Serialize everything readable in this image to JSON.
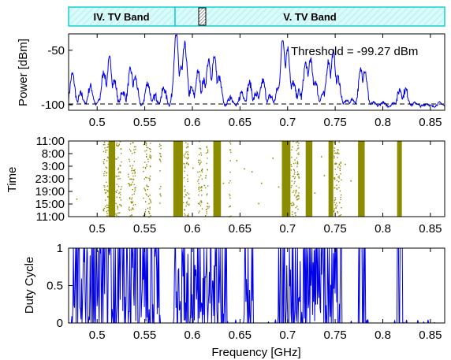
{
  "chart_data": [
    {
      "type": "line",
      "id": "power",
      "ylabel": "Power [dBm]",
      "xlim": [
        0.47,
        0.865
      ],
      "ylim": [
        -105,
        -35
      ],
      "yticks": [
        {
          "v": -50,
          "label": "-50"
        },
        {
          "v": -100,
          "label": "-100"
        }
      ],
      "xticks": [
        0.5,
        0.55,
        0.6,
        0.65,
        0.7,
        0.75,
        0.8,
        0.85
      ],
      "xtick_labels": [
        "0.5",
        "0.55",
        "0.6",
        "0.65",
        "0.7",
        "0.75",
        "0.8",
        "0.85"
      ],
      "threshold": -99.27,
      "annotation": "Threshold = -99.27 dBm",
      "series_color": "#0000e6",
      "series": [
        {
          "peaks": [
            [
              0.474,
              -72
            ],
            [
              0.483,
              -90
            ],
            [
              0.493,
              -83
            ],
            [
              0.503,
              -95
            ],
            [
              0.507,
              -70
            ],
            [
              0.513,
              -58
            ],
            [
              0.518,
              -78
            ],
            [
              0.527,
              -88
            ],
            [
              0.535,
              -68
            ],
            [
              0.54,
              -75
            ],
            [
              0.553,
              -80
            ],
            [
              0.561,
              -92
            ],
            [
              0.57,
              -85
            ],
            [
              0.583,
              -36
            ],
            [
              0.588,
              -66
            ],
            [
              0.592,
              -45
            ],
            [
              0.599,
              -85
            ],
            [
              0.606,
              -70
            ],
            [
              0.612,
              -78
            ],
            [
              0.617,
              -60
            ],
            [
              0.623,
              -55
            ],
            [
              0.628,
              -75
            ],
            [
              0.64,
              -92
            ],
            [
              0.652,
              -88
            ],
            [
              0.66,
              -80
            ],
            [
              0.667,
              -90
            ],
            [
              0.674,
              -78
            ],
            [
              0.682,
              -92
            ],
            [
              0.69,
              -85
            ],
            [
              0.695,
              -40
            ],
            [
              0.7,
              -48
            ],
            [
              0.706,
              -80
            ],
            [
              0.712,
              -88
            ],
            [
              0.719,
              -62
            ],
            [
              0.724,
              -58
            ],
            [
              0.729,
              -78
            ],
            [
              0.737,
              -90
            ],
            [
              0.743,
              -60
            ],
            [
              0.748,
              -52
            ],
            [
              0.753,
              -75
            ],
            [
              0.762,
              -96
            ],
            [
              0.768,
              -95
            ],
            [
              0.777,
              -68
            ],
            [
              0.781,
              -68
            ],
            [
              0.79,
              -98
            ],
            [
              0.8,
              -98
            ],
            [
              0.812,
              -98
            ],
            [
              0.818,
              -86
            ],
            [
              0.824,
              -86
            ],
            [
              0.834,
              -98
            ],
            [
              0.846,
              -99
            ],
            [
              0.86,
              -98
            ]
          ]
        }
      ]
    },
    {
      "type": "scatter",
      "id": "time",
      "ylabel": "Time",
      "xlim": [
        0.47,
        0.865
      ],
      "yticks": [
        "11:00",
        "8:00",
        "3:00",
        "23:00",
        "19:00",
        "15:00",
        "11:00"
      ],
      "xticks": [
        0.5,
        0.55,
        0.6,
        0.65,
        0.7,
        0.75,
        0.8,
        0.85
      ],
      "xtick_labels": [
        "0.5",
        "0.55",
        "0.6",
        "0.65",
        "0.7",
        "0.75",
        "0.8",
        "0.85"
      ],
      "marker_color": "#8c8c00",
      "solid_bands": [
        [
          0.512,
          0.519
        ],
        [
          0.58,
          0.59
        ],
        [
          0.622,
          0.63
        ],
        [
          0.694,
          0.703
        ],
        [
          0.719,
          0.726
        ],
        [
          0.743,
          0.748
        ],
        [
          0.774,
          0.781
        ],
        [
          0.815,
          0.82
        ]
      ],
      "dense_bands": [
        [
          0.506,
          0.512
        ],
        [
          0.519,
          0.525
        ],
        [
          0.532,
          0.54
        ],
        [
          0.548,
          0.556
        ],
        [
          0.565,
          0.567
        ],
        [
          0.59,
          0.596
        ],
        [
          0.605,
          0.61
        ],
        [
          0.613,
          0.616
        ],
        [
          0.638,
          0.64
        ],
        [
          0.703,
          0.712
        ],
        [
          0.748,
          0.756
        ]
      ],
      "sparse_points": [
        [
          0.478,
          0.76
        ],
        [
          0.6,
          0.35
        ],
        [
          0.607,
          0.3
        ],
        [
          0.632,
          0.55
        ],
        [
          0.646,
          0.25
        ],
        [
          0.662,
          0.4
        ],
        [
          0.672,
          0.55
        ],
        [
          0.684,
          0.22
        ],
        [
          0.69,
          0.6
        ],
        [
          0.738,
          0.45
        ],
        [
          0.76,
          0.3
        ],
        [
          0.766,
          0.52
        ],
        [
          0.583,
          0.12
        ],
        [
          0.612,
          0.58
        ],
        [
          0.654,
          0.36
        ],
        [
          0.728,
          0.68
        ],
        [
          0.735,
          0.2
        ],
        [
          0.596,
          0.75
        ],
        [
          0.617,
          0.86
        ],
        [
          0.669,
          0.82
        ]
      ]
    },
    {
      "type": "line",
      "id": "duty",
      "ylabel": "Duty Cycle",
      "xlabel": "Frequency [GHz]",
      "xlim": [
        0.47,
        0.865
      ],
      "ylim": [
        0,
        1
      ],
      "yticks": [
        {
          "v": 0,
          "label": "0"
        },
        {
          "v": 0.5,
          "label": "0.5"
        },
        {
          "v": 1,
          "label": "1"
        }
      ],
      "xticks": [
        0.5,
        0.55,
        0.6,
        0.65,
        0.7,
        0.75,
        0.8,
        0.85
      ],
      "xtick_labels": [
        "0.5",
        "0.55",
        "0.6",
        "0.65",
        "0.7",
        "0.75",
        "0.8",
        "0.85"
      ],
      "series_color": "#0000e6",
      "series": [
        {
          "active_ranges": [
            [
              0.473,
              0.566
            ],
            [
              0.58,
              0.636
            ],
            [
              0.653,
              0.664
            ],
            [
              0.69,
              0.757
            ],
            [
              0.774,
              0.782
            ],
            [
              0.815,
              0.821
            ]
          ]
        }
      ]
    }
  ],
  "bands": [
    {
      "label": "IV. TV Band",
      "from": 0.47,
      "to": 0.582
    },
    {
      "label": "V. TV Band",
      "from": 0.582,
      "to": 0.865
    }
  ],
  "band_marker_x": 0.6
}
